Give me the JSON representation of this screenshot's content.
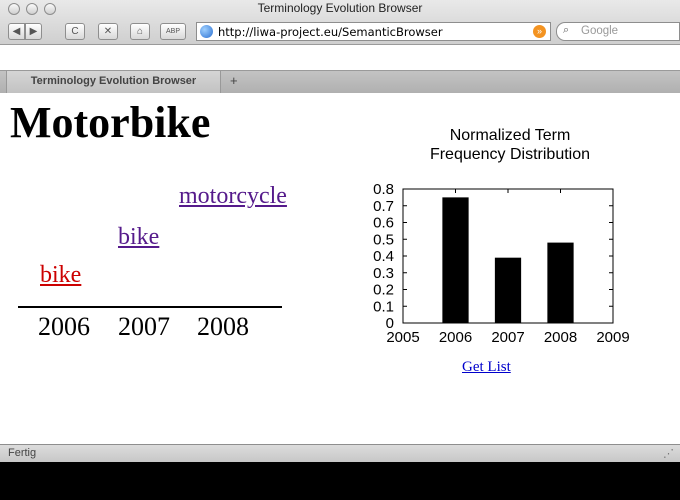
{
  "window": {
    "title": "Terminology Evolution Browser"
  },
  "toolbar": {
    "back_glyph": "◀",
    "forward_glyph": "▶",
    "reload_glyph": "C",
    "stop_glyph": "✕",
    "home_glyph": "⌂",
    "adblock_glyph": "ABP",
    "url": "http://liwa-project.eu/SemanticBrowser",
    "rss_glyph": "»",
    "search_placeholder": "Google"
  },
  "tabs": [
    {
      "label": "Terminology Evolution Browser"
    }
  ],
  "new_tab_glyph": "+",
  "page": {
    "term": "Motorbike",
    "evolution": [
      {
        "word": "motorcycle",
        "year": "2008"
      },
      {
        "word": "bike",
        "year": "2007"
      },
      {
        "word": "bike",
        "year": "2006"
      }
    ],
    "timeline_years": [
      "2006",
      "2007",
      "2008"
    ],
    "get_list_label": "Get List"
  },
  "chart_data": {
    "type": "bar",
    "title": "Normalized Term Frequency Distribution",
    "title_lines": [
      "Normalized Term",
      "Frequency Distribution"
    ],
    "xlabel": "",
    "ylabel": "",
    "x": [
      2006,
      2007,
      2008
    ],
    "values": [
      0.75,
      0.39,
      0.48
    ],
    "xlim": [
      2005,
      2009
    ],
    "ylim": [
      0,
      0.8
    ],
    "xticks": [
      2005,
      2006,
      2007,
      2008,
      2009
    ],
    "yticks": [
      0,
      0.1,
      0.2,
      0.3,
      0.4,
      0.5,
      0.6,
      0.7,
      0.8
    ],
    "bar_color": "#000000",
    "grid": false
  },
  "status": {
    "text": "Fertig"
  }
}
